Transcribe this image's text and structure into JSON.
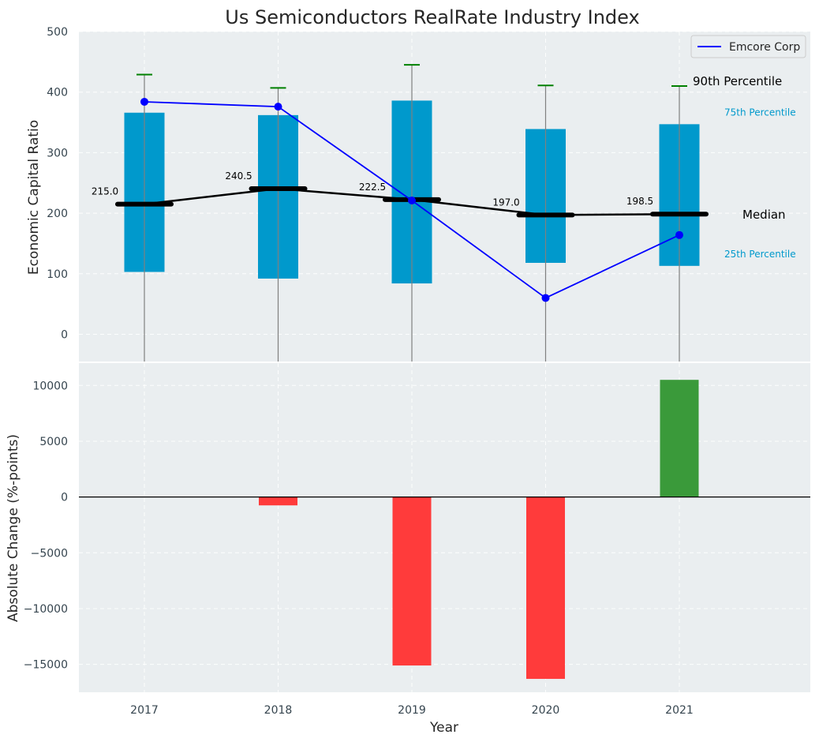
{
  "chart_data": [
    {
      "type": "box",
      "title": "Us Semiconductors RealRate Industry Index",
      "xlabel": "",
      "ylabel": "Economic Capital Ratio",
      "ylim": [
        -45,
        500
      ],
      "yticks": [
        0,
        100,
        200,
        300,
        400,
        500
      ],
      "categories": [
        "2017",
        "2018",
        "2019",
        "2020",
        "2021"
      ],
      "p25": [
        103,
        92,
        84,
        118,
        113
      ],
      "p75": [
        366,
        362,
        386,
        339,
        347
      ],
      "p90": [
        429,
        407,
        445,
        411,
        410
      ],
      "median": [
        215.0,
        240.5,
        222.5,
        197.0,
        198.5
      ],
      "median_labels": [
        "215.0",
        "240.5",
        "222.5",
        "197.0",
        "198.5"
      ],
      "series": [
        {
          "name": "Emcore Corp",
          "values": [
            384,
            376,
            221,
            60,
            164
          ]
        }
      ],
      "annotations": {
        "p90": "90th Percentile",
        "p75": "75th Percentile",
        "median": "Median",
        "p25": "25th Percentile"
      },
      "legend_position": "top-right",
      "grid": true
    },
    {
      "type": "bar",
      "xlabel": "Year",
      "ylabel": "Absolute Change (%-points)",
      "ylim": [
        -17500,
        12000
      ],
      "yticks": [
        -15000,
        -10000,
        -5000,
        0,
        5000,
        10000
      ],
      "ytick_labels": [
        "−15000",
        "−10000",
        "−5000",
        "0",
        "5000",
        "10000"
      ],
      "categories": [
        "2017",
        "2018",
        "2019",
        "2020",
        "2021"
      ],
      "values": [
        0,
        -750,
        -15100,
        -16300,
        10500
      ],
      "grid": true
    }
  ],
  "colors": {
    "box": "#0099cc",
    "whisker": "#808080",
    "cap": "#008000",
    "median": "#000000",
    "series": "#0000ff",
    "positive": "#3a9a3a",
    "negative": "#ff3b3b",
    "panel": "#eaeef0"
  }
}
